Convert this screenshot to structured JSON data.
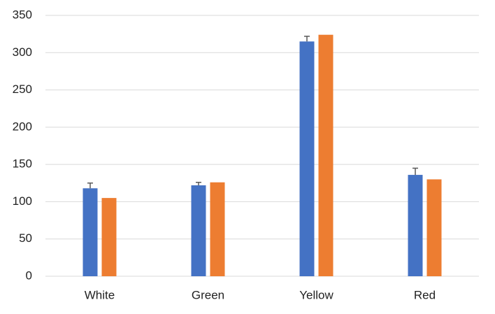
{
  "chart_data": {
    "type": "bar",
    "categories": [
      "White",
      "Green",
      "Yellow",
      "Red"
    ],
    "series": [
      {
        "color": "#4472c4",
        "values": [
          118,
          122,
          315,
          136
        ],
        "errors": [
          7,
          4,
          7,
          9
        ]
      },
      {
        "color": "#ed7d31",
        "values": [
          105,
          126,
          324,
          130
        ]
      }
    ],
    "ylim": [
      0,
      350
    ],
    "yticks": [
      0,
      50,
      100,
      150,
      200,
      250,
      300,
      350
    ],
    "grid": true
  }
}
